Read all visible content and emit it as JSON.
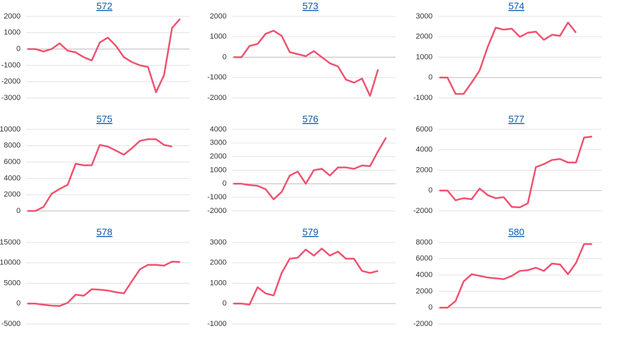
{
  "chart_data": [
    {
      "type": "line",
      "title": "572",
      "color": "#f0506e",
      "ylim": [
        -3000,
        2000
      ],
      "yticks": [
        2000,
        1000,
        0,
        -1000,
        -2000,
        -3000
      ],
      "grid": true,
      "values": [
        0,
        0,
        -150,
        0,
        350,
        -100,
        -200,
        -500,
        -700,
        400,
        700,
        200,
        -500,
        -800,
        -1000,
        -1100,
        -2650,
        -1600,
        1300,
        1850
      ]
    },
    {
      "type": "line",
      "title": "573",
      "color": "#f0506e",
      "ylim": [
        -2000,
        2000
      ],
      "yticks": [
        2000,
        1000,
        0,
        -1000,
        -2000
      ],
      "grid": true,
      "values": [
        0,
        0,
        550,
        650,
        1150,
        1300,
        1050,
        250,
        150,
        50,
        300,
        0,
        -300,
        -450,
        -1100,
        -1250,
        -1050,
        -1900,
        -600
      ]
    },
    {
      "type": "line",
      "title": "574",
      "color": "#f0506e",
      "ylim": [
        -1000,
        3000
      ],
      "yticks": [
        3000,
        2000,
        1000,
        0,
        -1000
      ],
      "grid": true,
      "values": [
        0,
        0,
        -800,
        -800,
        -250,
        350,
        1500,
        2450,
        2350,
        2400,
        2000,
        2200,
        2250,
        1850,
        2100,
        2050,
        2700,
        2200
      ]
    },
    {
      "type": "line",
      "title": "575",
      "color": "#f0506e",
      "ylim": [
        0,
        10000
      ],
      "yticks": [
        10000,
        8000,
        6000,
        4000,
        2000,
        0
      ],
      "grid": true,
      "values": [
        0,
        0,
        500,
        2100,
        2700,
        3200,
        5800,
        5600,
        5600,
        8100,
        7900,
        7400,
        6900,
        7700,
        8600,
        8800,
        8800,
        8100,
        7900
      ]
    },
    {
      "type": "line",
      "title": "576",
      "color": "#f0506e",
      "ylim": [
        -2000,
        4000
      ],
      "yticks": [
        4000,
        3000,
        2000,
        1000,
        0,
        -1000,
        -2000
      ],
      "grid": true,
      "values": [
        0,
        0,
        -100,
        -150,
        -400,
        -1150,
        -600,
        600,
        900,
        0,
        1000,
        1100,
        600,
        1200,
        1200,
        1100,
        1350,
        1300,
        2400,
        3400
      ]
    },
    {
      "type": "line",
      "title": "577",
      "color": "#f0506e",
      "ylim": [
        -2000,
        6000
      ],
      "yticks": [
        6000,
        4000,
        2000,
        0,
        -2000
      ],
      "grid": true,
      "values": [
        0,
        0,
        -950,
        -750,
        -850,
        200,
        -450,
        -750,
        -650,
        -1600,
        -1650,
        -1250,
        2300,
        2600,
        3000,
        3100,
        2750,
        2750,
        5200,
        5300
      ]
    },
    {
      "type": "line",
      "title": "578",
      "color": "#f0506e",
      "ylim": [
        -5000,
        15000
      ],
      "yticks": [
        15000,
        10000,
        5000,
        0,
        -5000
      ],
      "grid": true,
      "values": [
        0,
        0,
        -300,
        -500,
        -600,
        200,
        2200,
        1900,
        3500,
        3400,
        3200,
        2800,
        2500,
        5500,
        8400,
        9500,
        9500,
        9300,
        10300,
        10200
      ]
    },
    {
      "type": "line",
      "title": "579",
      "color": "#f0506e",
      "ylim": [
        -1000,
        3000
      ],
      "yticks": [
        3000,
        2000,
        1000,
        0,
        -1000
      ],
      "grid": true,
      "values": [
        0,
        0,
        -50,
        800,
        500,
        400,
        1500,
        2200,
        2250,
        2650,
        2350,
        2700,
        2350,
        2550,
        2200,
        2200,
        1600,
        1500,
        1600
      ]
    },
    {
      "type": "line",
      "title": "580",
      "color": "#f0506e",
      "ylim": [
        -2000,
        8000
      ],
      "yticks": [
        8000,
        6000,
        4000,
        2000,
        0,
        -2000
      ],
      "grid": true,
      "values": [
        0,
        0,
        800,
        3200,
        4100,
        3900,
        3700,
        3600,
        3500,
        3900,
        4500,
        4600,
        4900,
        4500,
        5400,
        5300,
        4100,
        5500,
        7800,
        7800
      ]
    }
  ]
}
